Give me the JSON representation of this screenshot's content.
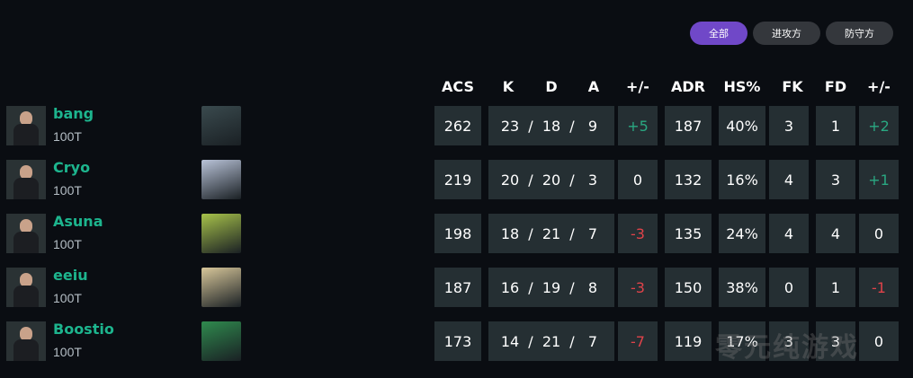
{
  "filters": [
    {
      "label": "全部",
      "active": true
    },
    {
      "label": "进攻方",
      "active": false
    },
    {
      "label": "防守方",
      "active": false
    }
  ],
  "headers": {
    "acs": "ACS",
    "k": "K",
    "d": "D",
    "a": "A",
    "pm": "+/-",
    "adr": "ADR",
    "hs": "HS%",
    "fk": "FK",
    "fd": "FD",
    "fkpm": "+/-"
  },
  "colors": {
    "accent": "#7048c8",
    "name": "#1db58e",
    "positive": "#2aa882",
    "negative": "#e0434a",
    "cell": "#252f33"
  },
  "players": [
    {
      "name": "bang",
      "team": "100T",
      "agent_color": "#3a4a4e",
      "acs": "262",
      "k": "23",
      "d": "18",
      "a": "9",
      "pm": "+5",
      "pm_sign": "pos",
      "adr": "187",
      "hs": "40%",
      "fk": "3",
      "fd": "1",
      "fkpm": "+2",
      "fkpm_sign": "pos"
    },
    {
      "name": "Cryo",
      "team": "100T",
      "agent_color": "#b9c3d8",
      "acs": "219",
      "k": "20",
      "d": "20",
      "a": "3",
      "pm": "0",
      "pm_sign": "zero",
      "adr": "132",
      "hs": "16%",
      "fk": "4",
      "fd": "3",
      "fkpm": "+1",
      "fkpm_sign": "pos"
    },
    {
      "name": "Asuna",
      "team": "100T",
      "agent_color": "#a7c24a",
      "acs": "198",
      "k": "18",
      "d": "21",
      "a": "7",
      "pm": "-3",
      "pm_sign": "neg",
      "adr": "135",
      "hs": "24%",
      "fk": "4",
      "fd": "4",
      "fkpm": "0",
      "fkpm_sign": "zero"
    },
    {
      "name": "eeiu",
      "team": "100T",
      "agent_color": "#d8c79a",
      "acs": "187",
      "k": "16",
      "d": "19",
      "a": "8",
      "pm": "-3",
      "pm_sign": "neg",
      "adr": "150",
      "hs": "38%",
      "fk": "0",
      "fd": "1",
      "fkpm": "-1",
      "fkpm_sign": "neg"
    },
    {
      "name": "Boostio",
      "team": "100T",
      "agent_color": "#2f8a4e",
      "acs": "173",
      "k": "14",
      "d": "21",
      "a": "7",
      "pm": "-7",
      "pm_sign": "neg",
      "adr": "119",
      "hs": "17%",
      "fk": "3",
      "fd": "3",
      "fkpm": "0",
      "fkpm_sign": "zero"
    }
  ],
  "sep": "/",
  "watermark": "零元纯游戏"
}
